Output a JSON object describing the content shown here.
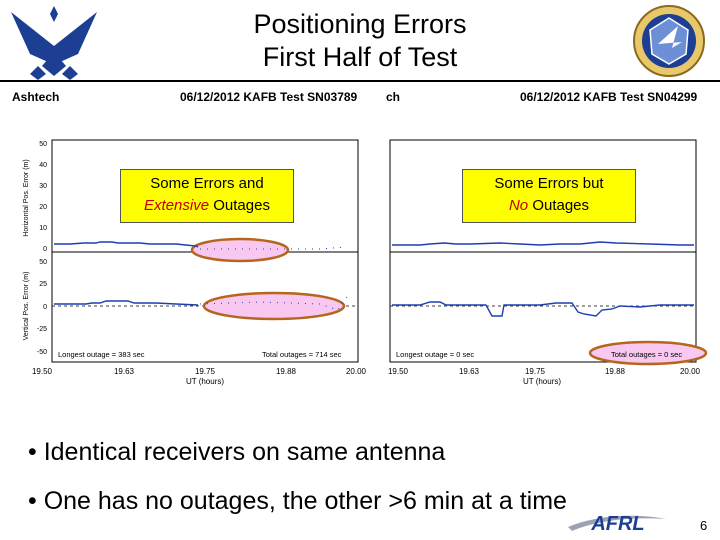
{
  "title": {
    "line1": "Positioning Errors",
    "line2": "First Half of Test"
  },
  "header_bar": {
    "left_label": "Ashtech",
    "left_test": "06/12/2012 KAFB Test SN03789",
    "mid_fragment": "ch",
    "right_test": "06/12/2012 KAFB Test SN04299"
  },
  "left_plot": {
    "h_ylabel": "Horizontal Pos. Error (m)",
    "v_ylabel": "Vertical Pos. Error (m)",
    "h_ticks": [
      "50",
      "40",
      "30",
      "20",
      "10",
      "0"
    ],
    "v_ticks": [
      "50",
      "25",
      "0",
      "-25",
      "-50"
    ],
    "x_ticks": [
      "19.50",
      "19.63",
      "19.75",
      "19.88",
      "20.00"
    ],
    "xlabel": "UT (hours)",
    "longest_outage": "Longest outage = 383 sec",
    "total_outages": "Total outages = 714 sec"
  },
  "right_plot": {
    "x_ticks": [
      "19.50",
      "19.63",
      "19.75",
      "19.88",
      "20.00"
    ],
    "xlabel": "UT (hours)",
    "longest_outage": "Longest outage = 0 sec",
    "total_outages": "Total outages = 0 sec"
  },
  "callouts": {
    "left_pre": "Some Errors and",
    "left_em": "Extensive",
    "left_post": "Outages",
    "right_pre": "Some Errors but",
    "right_em": "No",
    "right_post": "Outages"
  },
  "bullets": [
    "• Identical receivers on same antenna",
    "• One has no outages, the other >6 min at a time"
  ],
  "logo_text": "AFRL",
  "page_number": "6",
  "colors": {
    "callout": "#ffff00",
    "ellipse": "#f8c8f0",
    "ellipse_stroke": "#b5651d",
    "trace": "#1f3fb0",
    "logo_blue": "#1c3f94"
  }
}
